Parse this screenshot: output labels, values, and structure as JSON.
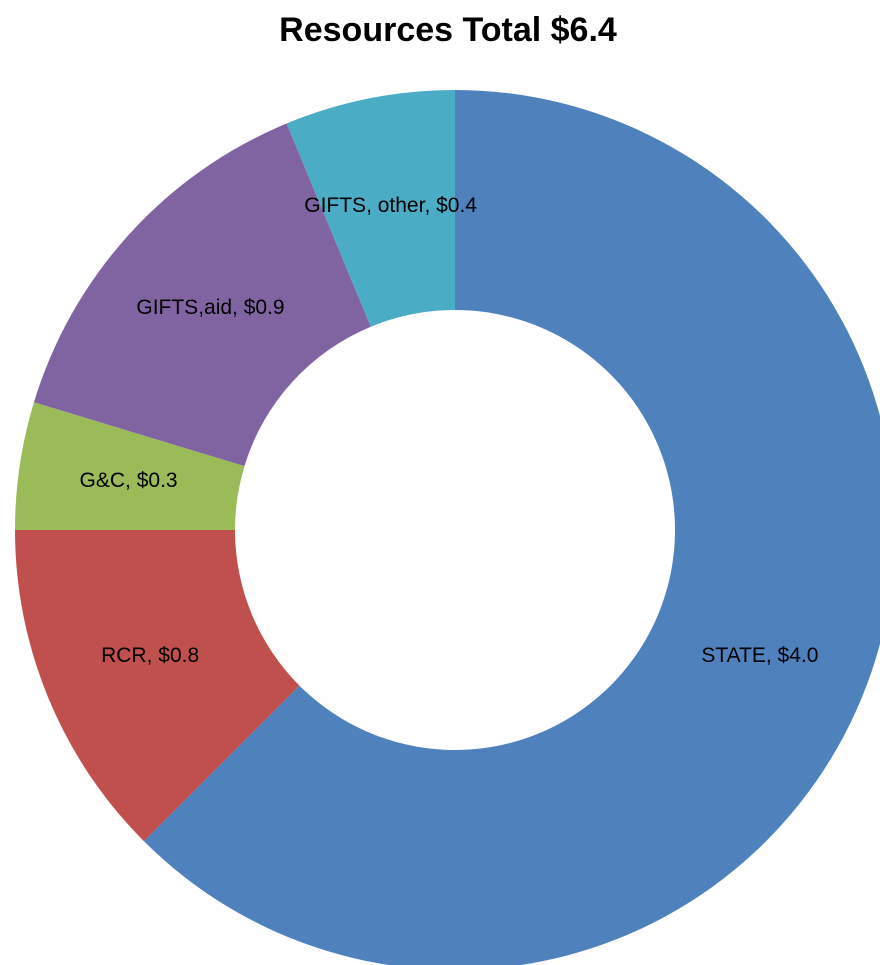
{
  "chart_data": {
    "type": "donut",
    "title": "Resources Total $6.4",
    "categories": [
      "STATE",
      "RCR",
      "G&C",
      "GIFTS,aid",
      "GIFTS, other"
    ],
    "values": [
      4.0,
      0.8,
      0.3,
      0.9,
      0.4
    ],
    "value_labels": [
      "STATE, $4.0",
      "RCR, $0.8",
      "G&C, $0.3",
      "GIFTS,aid, $0.9",
      "GIFTS, other, $0.4"
    ],
    "colors": [
      "#4F81BD",
      "#C0504D",
      "#9BBB59",
      "#8064A2",
      "#4BACC6"
    ]
  }
}
